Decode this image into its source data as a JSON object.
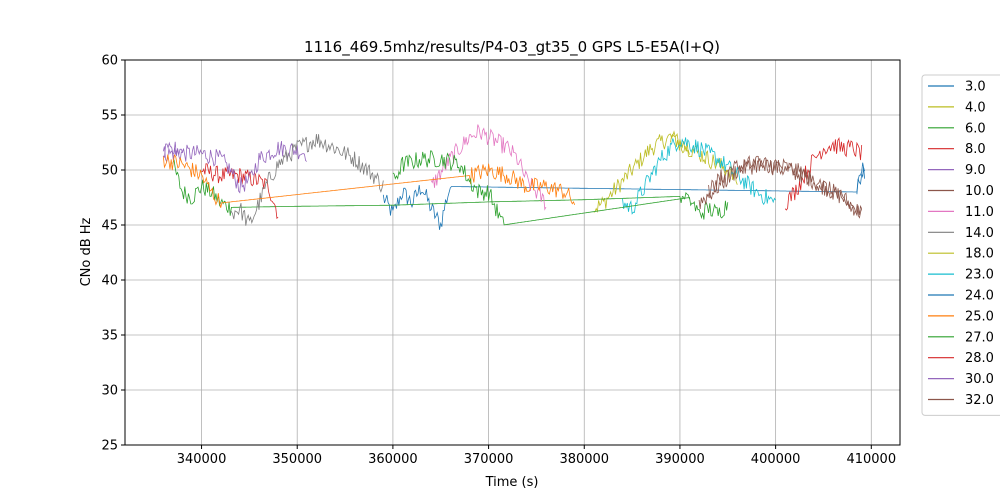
{
  "chart_data": {
    "type": "line",
    "title": "1116_469.5mhz/results/P4-03_gt35_0 GPS L5-E5A(I+Q)",
    "xlabel": "Time (s)",
    "ylabel": "CNo dB Hz",
    "xlim": [
      332000,
      413000
    ],
    "ylim": [
      25,
      60
    ],
    "x_ticks": [
      340000,
      350000,
      360000,
      370000,
      380000,
      390000,
      400000,
      410000
    ],
    "x_tick_labels": [
      "340000",
      "350000",
      "360000",
      "370000",
      "380000",
      "390000",
      "400000",
      "410000"
    ],
    "y_ticks": [
      25,
      30,
      35,
      40,
      45,
      50,
      55,
      60
    ],
    "y_tick_labels": [
      "25",
      "30",
      "35",
      "40",
      "45",
      "50",
      "55",
      "60"
    ],
    "grid": true,
    "legend_position": "outside-right",
    "series": [
      {
        "name": "3.0",
        "color": "#1f77b4",
        "points": [
          [
            359000,
            47.5
          ],
          [
            360000,
            46
          ],
          [
            361000,
            48
          ],
          [
            362000,
            47
          ],
          [
            363000,
            48.5
          ],
          [
            364000,
            46.5
          ],
          [
            365000,
            45
          ],
          [
            365500,
            47
          ],
          [
            366000,
            48.5
          ],
          [
            408500,
            48
          ],
          [
            409000,
            50
          ],
          [
            409300,
            50
          ]
        ]
      },
      {
        "name": "4.0",
        "color": "#bcbd22",
        "points": [
          [
            381000,
            46.5
          ],
          [
            382000,
            47
          ],
          [
            383000,
            48
          ],
          [
            384000,
            49
          ],
          [
            385000,
            50
          ],
          [
            386000,
            51
          ],
          [
            387000,
            52
          ],
          [
            388000,
            52.5
          ],
          [
            389000,
            53
          ],
          [
            390000,
            52.5
          ],
          [
            391000,
            52
          ]
        ]
      },
      {
        "name": "6.0",
        "color": "#2ca02c",
        "points": [
          [
            337000,
            50.5
          ],
          [
            338000,
            48
          ],
          [
            339000,
            47.5
          ],
          [
            340000,
            48.5
          ],
          [
            341000,
            48
          ],
          [
            342000,
            47
          ],
          [
            343000,
            46.6
          ],
          [
            350000,
            46.7
          ],
          [
            360000,
            46.8
          ],
          [
            370000,
            47.1
          ],
          [
            380000,
            47.3
          ],
          [
            390000,
            47.6
          ],
          [
            391000,
            47.6
          ]
        ]
      },
      {
        "name": "8.0",
        "color": "#d62728",
        "points": [
          [
            340000,
            50
          ],
          [
            342000,
            49.5
          ],
          [
            344000,
            49.5
          ],
          [
            346000,
            49
          ],
          [
            347000,
            48.5
          ],
          [
            348000,
            46
          ]
        ]
      },
      {
        "name": "9.0",
        "color": "#9467bd",
        "points": [
          [
            336000,
            51.5
          ],
          [
            338000,
            51.5
          ],
          [
            340000,
            51.5
          ],
          [
            342000,
            51
          ],
          [
            343000,
            50
          ],
          [
            344000,
            48.5
          ],
          [
            345000,
            49
          ],
          [
            346000,
            51
          ],
          [
            348000,
            52
          ],
          [
            350000,
            51.8
          ],
          [
            351000,
            51.5
          ]
        ]
      },
      {
        "name": "10.0",
        "color": "#8c564b",
        "points": [
          [
            393000,
            48
          ],
          [
            395000,
            50
          ],
          [
            397000,
            50.5
          ],
          [
            399000,
            50.5
          ],
          [
            401000,
            50
          ],
          [
            403000,
            49.5
          ],
          [
            405000,
            48.5
          ],
          [
            407000,
            47.5
          ],
          [
            409000,
            46
          ]
        ]
      },
      {
        "name": "11.0",
        "color": "#e377c2",
        "points": [
          [
            364000,
            48.5
          ],
          [
            366000,
            51
          ],
          [
            368000,
            53
          ],
          [
            369000,
            53.5
          ],
          [
            370000,
            53
          ],
          [
            372000,
            52
          ],
          [
            373000,
            51
          ],
          [
            374000,
            49
          ],
          [
            375000,
            48
          ],
          [
            376000,
            47
          ]
        ]
      },
      {
        "name": "14.0",
        "color": "#7f7f7f",
        "points": [
          [
            343000,
            46
          ],
          [
            344000,
            46.5
          ],
          [
            345000,
            45
          ],
          [
            346000,
            47
          ],
          [
            347000,
            49
          ],
          [
            348000,
            50.5
          ],
          [
            350000,
            52
          ],
          [
            352000,
            52.8
          ],
          [
            354000,
            52
          ],
          [
            356000,
            51
          ],
          [
            358000,
            49.5
          ],
          [
            359000,
            48.5
          ]
        ]
      },
      {
        "name": "18.0",
        "color": "#bcbd22",
        "points": [
          [
            389000,
            53
          ],
          [
            391000,
            52
          ],
          [
            393000,
            51
          ],
          [
            395000,
            50
          ],
          [
            396000,
            49
          ]
        ]
      },
      {
        "name": "23.0",
        "color": "#17becf",
        "points": [
          [
            384000,
            47
          ],
          [
            385000,
            46.5
          ],
          [
            386000,
            48
          ],
          [
            387000,
            49.5
          ],
          [
            388000,
            51
          ],
          [
            389000,
            52
          ],
          [
            390000,
            52.8
          ],
          [
            392000,
            52
          ],
          [
            394000,
            51
          ],
          [
            396000,
            49.5
          ],
          [
            398000,
            48
          ],
          [
            399000,
            47.5
          ],
          [
            400000,
            47
          ]
        ]
      },
      {
        "name": "24.0",
        "color": "#1f77b4",
        "points": [
          [
            408500,
            48.5
          ],
          [
            409000,
            50
          ],
          [
            409300,
            50
          ]
        ]
      },
      {
        "name": "25.0",
        "color": "#ff7f0e",
        "points": [
          [
            336000,
            51
          ],
          [
            338000,
            50.5
          ],
          [
            340000,
            49.5
          ],
          [
            341000,
            48
          ],
          [
            342000,
            47
          ],
          [
            368000,
            49.5
          ],
          [
            370000,
            50
          ],
          [
            372000,
            49.5
          ],
          [
            374000,
            48.5
          ],
          [
            376000,
            48.5
          ],
          [
            378000,
            48
          ],
          [
            379000,
            47
          ]
        ]
      },
      {
        "name": "27.0",
        "color": "#2ca02c",
        "points": [
          [
            360000,
            49
          ],
          [
            361000,
            50.5
          ],
          [
            363000,
            51
          ],
          [
            365000,
            51
          ],
          [
            367000,
            50.5
          ],
          [
            368000,
            49
          ],
          [
            369000,
            48
          ],
          [
            370000,
            48
          ],
          [
            371000,
            46
          ],
          [
            371500,
            45
          ],
          [
            391000,
            47.5
          ],
          [
            392000,
            46
          ],
          [
            393000,
            46.5
          ],
          [
            394000,
            46
          ],
          [
            395000,
            47
          ]
        ]
      },
      {
        "name": "28.0",
        "color": "#d62728",
        "points": [
          [
            401000,
            47
          ],
          [
            402000,
            48
          ],
          [
            403000,
            49.5
          ],
          [
            404000,
            51
          ],
          [
            405000,
            52
          ],
          [
            406000,
            52.3
          ],
          [
            407000,
            52
          ],
          [
            408000,
            52
          ],
          [
            409000,
            51.5
          ]
        ]
      },
      {
        "name": "30.0",
        "color": "#9467bd",
        "points": [
          [
            336000,
            51.5
          ],
          [
            337000,
            51.8
          ],
          [
            338000,
            52
          ]
        ]
      },
      {
        "name": "32.0",
        "color": "#8c564b",
        "points": [
          [
            392000,
            47
          ],
          [
            394000,
            48.5
          ],
          [
            396000,
            50
          ],
          [
            398000,
            50.5
          ],
          [
            400000,
            50.5
          ],
          [
            402000,
            50
          ],
          [
            404000,
            49
          ],
          [
            406000,
            48
          ],
          [
            408000,
            46.5
          ],
          [
            409000,
            46
          ]
        ]
      }
    ]
  }
}
